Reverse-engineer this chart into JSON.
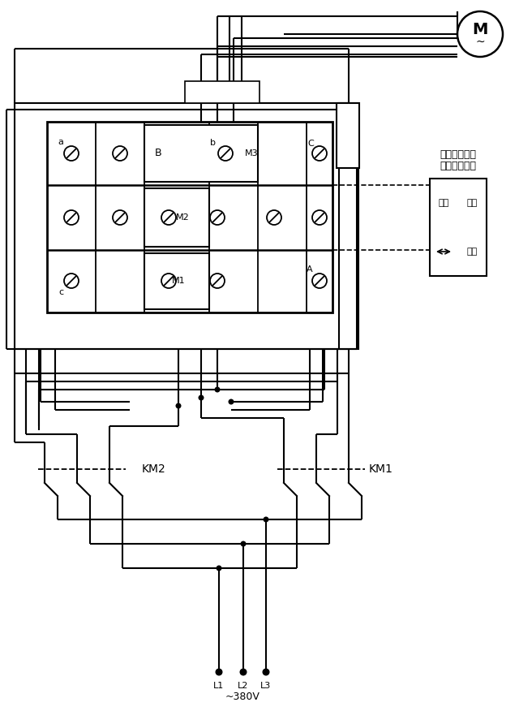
{
  "bg_color": "#ffffff",
  "fig_width": 6.4,
  "fig_height": 8.76,
  "note_line1": "由导程器控制",
  "note_line2": "行车吊重限位",
  "label_a": "a",
  "label_b": "b",
  "label_c": "c",
  "label_A": "A",
  "label_B": "B",
  "label_C": "C",
  "label_M1": "M1",
  "label_M2": "M2",
  "label_M3": "M3",
  "label_KM1": "KM1",
  "label_KM2": "KM2",
  "label_L1": "L1",
  "label_L2": "L2",
  "label_L3": "L3",
  "label_voltage": "~380V",
  "label_xianwei": "限位",
  "label_yunxing": "运行",
  "label_M_motor": "M",
  "label_motor_wave": "~"
}
